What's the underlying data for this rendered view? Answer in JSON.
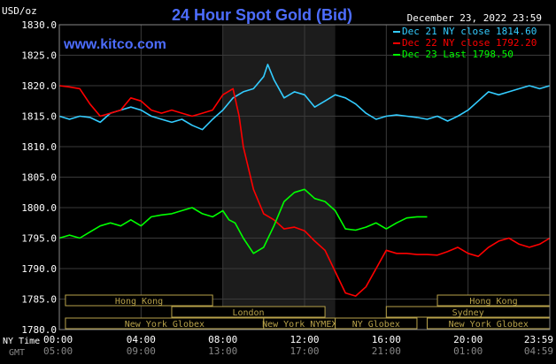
{
  "chart_data": {
    "type": "line",
    "title": "24 Hour Spot Gold (Bid)",
    "watermark": "www.kitco.com",
    "date_label": "December 23, 2022 23:59",
    "ylabel": "USD/oz",
    "ylim": [
      1780,
      1830
    ],
    "yticks": [
      "1830.0",
      "1825.0",
      "1820.0",
      "1815.0",
      "1810.0",
      "1805.0",
      "1800.0",
      "1795.0",
      "1790.0",
      "1785.0",
      "1780.0"
    ],
    "xlim": [
      0,
      24
    ],
    "xticks_ny": [
      "00:00",
      "04:00",
      "08:00",
      "12:00",
      "16:00",
      "20:00",
      "23:59"
    ],
    "xticks_gmt": [
      "05:00",
      "09:00",
      "13:00",
      "17:00",
      "21:00",
      "01:00",
      "04:59"
    ],
    "row_label_ny": "NY Time",
    "row_label_gmt": "GMT",
    "shade_x": [
      8.0,
      13.5
    ],
    "series": [
      {
        "name": "Dec 21 NY close 1814.60",
        "color": "#33ccff",
        "x": [
          0,
          0.5,
          1,
          1.5,
          2,
          2.5,
          3,
          3.5,
          4,
          4.5,
          5,
          5.5,
          6,
          6.5,
          7,
          7.5,
          8,
          8.5,
          9,
          9.5,
          10,
          10.2,
          10.5,
          11,
          11.5,
          12,
          12.5,
          13,
          13.5,
          14,
          14.5,
          15,
          15.5,
          16,
          16.5,
          17,
          17.5,
          18,
          18.5,
          19,
          19.5,
          20,
          20.5,
          21,
          21.5,
          22,
          22.5,
          23,
          23.5,
          24
        ],
        "y": [
          1815,
          1814.5,
          1815,
          1814.8,
          1814,
          1815.5,
          1816,
          1816.5,
          1816,
          1815,
          1814.5,
          1814,
          1814.5,
          1813.5,
          1812.8,
          1814.5,
          1816,
          1818,
          1819,
          1819.5,
          1821.5,
          1823.5,
          1821,
          1818,
          1819,
          1818.5,
          1816.5,
          1817.5,
          1818.5,
          1818,
          1817,
          1815.5,
          1814.5,
          1815,
          1815.2,
          1815,
          1814.8,
          1814.5,
          1815,
          1814.2,
          1815,
          1816,
          1817.5,
          1819,
          1818.5,
          1819,
          1819.5,
          1820,
          1819.5,
          1820
        ]
      },
      {
        "name": "Dec 22 NY close 1792.20",
        "color": "#ff0000",
        "x": [
          0,
          0.5,
          1,
          1.5,
          2,
          2.5,
          3,
          3.5,
          4,
          4.5,
          5,
          5.5,
          6,
          6.5,
          7,
          7.5,
          8,
          8.5,
          8.8,
          9,
          9.5,
          10,
          10.5,
          11,
          11.5,
          12,
          12.5,
          13,
          13.5,
          14,
          14.5,
          15,
          15.5,
          16,
          16.5,
          17,
          17.5,
          18,
          18.5,
          19,
          19.5,
          20,
          20.5,
          21,
          21.5,
          22,
          22.5,
          23,
          23.5,
          24
        ],
        "y": [
          1820,
          1819.8,
          1819.5,
          1817,
          1815,
          1815.5,
          1816,
          1818,
          1817.5,
          1816,
          1815.5,
          1816,
          1815.5,
          1815,
          1815.5,
          1816,
          1818.5,
          1819.5,
          1815,
          1810,
          1803,
          1799,
          1798,
          1796.5,
          1796.8,
          1796.2,
          1794.5,
          1793,
          1789.5,
          1786,
          1785.5,
          1787,
          1790,
          1793,
          1792.5,
          1792.5,
          1792.3,
          1792.3,
          1792.2,
          1792.8,
          1793.5,
          1792.5,
          1792,
          1793.5,
          1794.5,
          1795,
          1794,
          1793.5,
          1794,
          1795
        ]
      },
      {
        "name": "Dec 23 Last 1798.50",
        "color": "#00ff00",
        "x": [
          0,
          0.5,
          1,
          1.5,
          2,
          2.5,
          3,
          3.5,
          4,
          4.5,
          5,
          5.5,
          6,
          6.5,
          7,
          7.5,
          8,
          8.3,
          8.6,
          9,
          9.5,
          10,
          10.5,
          11,
          11.5,
          12,
          12.5,
          13,
          13.5,
          14,
          14.5,
          15,
          15.5,
          16,
          16.5,
          17,
          17.5,
          18
        ],
        "y": [
          1795,
          1795.5,
          1795,
          1796,
          1797,
          1797.5,
          1797,
          1798,
          1797,
          1798.5,
          1798.8,
          1799,
          1799.5,
          1800,
          1799,
          1798.5,
          1799.5,
          1798,
          1797.5,
          1795,
          1792.5,
          1793.5,
          1797,
          1801,
          1802.5,
          1803,
          1801.5,
          1801,
          1799.5,
          1796.5,
          1796.3,
          1796.8,
          1797.5,
          1796.5,
          1797.5,
          1798.3,
          1798.5,
          1798.5
        ]
      }
    ],
    "sessions": [
      {
        "label": "Hong Kong",
        "row": 0,
        "x0": 0.3,
        "x1": 7.5
      },
      {
        "label": "London",
        "row": 1,
        "x0": 5.5,
        "x1": 13.0
      },
      {
        "label": "New York Globex",
        "row": 2,
        "x0": 0.3,
        "x1": 10.0
      },
      {
        "label": "New York NYMEX",
        "row": 2,
        "x0": 10.0,
        "x1": 13.5
      },
      {
        "label": "NY Globex",
        "row": 2,
        "x0": 13.5,
        "x1": 17.5
      },
      {
        "label": "Hong Kong",
        "row": 0,
        "x0": 18.5,
        "x1": 24.0
      },
      {
        "label": "Sydney",
        "row": 1,
        "x0": 16.0,
        "x1": 24.0
      },
      {
        "label": "New York Globex",
        "row": 2,
        "x0": 18.0,
        "x1": 24.0
      }
    ]
  }
}
